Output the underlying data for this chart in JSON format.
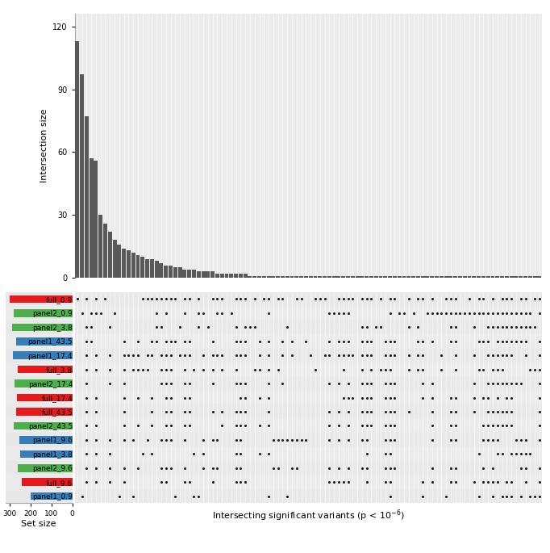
{
  "bar_heights": [
    113,
    97,
    77,
    57,
    56,
    30,
    26,
    22,
    18,
    16,
    14,
    13,
    12,
    11,
    10,
    9,
    9,
    8,
    7,
    6,
    6,
    5,
    5,
    4,
    4,
    4,
    3,
    3,
    3,
    3,
    2,
    2,
    2,
    2,
    2,
    2,
    2,
    1,
    1,
    1,
    1,
    1,
    1,
    1,
    1,
    1,
    1,
    1,
    1,
    1,
    1,
    1,
    1,
    1,
    1,
    1,
    1,
    1,
    1,
    1,
    1,
    1,
    1,
    1,
    1,
    1,
    1,
    1,
    1,
    1,
    1,
    1,
    1,
    1,
    1,
    1,
    1,
    1,
    1,
    1,
    1,
    1,
    1,
    1,
    1,
    1,
    1,
    1,
    1,
    1,
    1,
    1,
    1,
    1,
    1,
    1,
    1,
    1,
    1,
    1
  ],
  "row_labels": [
    "full_0.9",
    "panel2_0.9",
    "panel2_3.8",
    "panel1_43.5",
    "panel1_17.4",
    "full_3.8",
    "panel2_17.4",
    "full_17.4",
    "full_43.5",
    "panel2_43.5",
    "panel1_9.6",
    "panel1_3.8",
    "panel2_9.6",
    "full_9.6",
    "panel1_0.9"
  ],
  "row_colors": [
    "#e41a1c",
    "#4daf4a",
    "#4daf4a",
    "#377eb8",
    "#377eb8",
    "#e41a1c",
    "#4daf4a",
    "#e41a1c",
    "#e41a1c",
    "#4daf4a",
    "#377eb8",
    "#377eb8",
    "#4daf4a",
    "#e41a1c",
    "#377eb8"
  ],
  "set_sizes": [
    300,
    280,
    290,
    270,
    285,
    260,
    275,
    265,
    270,
    280,
    255,
    250,
    260,
    240,
    200
  ],
  "bar_color": "#595959",
  "bg_color_light": "#ebebeb",
  "bg_color_dark": "#e0e0e0",
  "dot_color": "#1a1a1a",
  "ylabel": "Intersection size",
  "xlabel": "Intersecting significant variants (p < 10$^{-6}$)",
  "set_size_label": "Set size",
  "yticks": [
    0,
    30,
    60,
    90,
    120
  ],
  "n_cols": 100,
  "n_rows": 15,
  "dot_matrix": [
    [
      1,
      0,
      1,
      0,
      1,
      0,
      1,
      0,
      0,
      0,
      0,
      0,
      0,
      0,
      1,
      1,
      1,
      1,
      1,
      1,
      1,
      1,
      0,
      1,
      1,
      0,
      1,
      0,
      0,
      1,
      1,
      1,
      0,
      0,
      1,
      1,
      1,
      0,
      1,
      0,
      1,
      1,
      0,
      1,
      1,
      0,
      0,
      1,
      1,
      0,
      0,
      1,
      1,
      1,
      0,
      0,
      1,
      1,
      1,
      1,
      0,
      1,
      1,
      1,
      0,
      1,
      0,
      1,
      1,
      0,
      0,
      1,
      0,
      1,
      1,
      0,
      1,
      0,
      0,
      1,
      1,
      1,
      0,
      0,
      1,
      0,
      1,
      1,
      0,
      1,
      0,
      1,
      1,
      1,
      0,
      1,
      1,
      0,
      1,
      1
    ],
    [
      0,
      1,
      0,
      1,
      1,
      1,
      0,
      0,
      1,
      0,
      0,
      0,
      0,
      0,
      0,
      0,
      0,
      1,
      0,
      1,
      0,
      0,
      0,
      1,
      0,
      0,
      1,
      1,
      0,
      0,
      1,
      1,
      0,
      1,
      0,
      0,
      0,
      0,
      0,
      0,
      0,
      1,
      0,
      0,
      0,
      0,
      0,
      0,
      0,
      0,
      0,
      0,
      0,
      0,
      1,
      1,
      1,
      1,
      1,
      0,
      0,
      0,
      0,
      0,
      0,
      0,
      0,
      1,
      0,
      1,
      1,
      0,
      1,
      0,
      0,
      1,
      1,
      1,
      1,
      1,
      1,
      1,
      1,
      1,
      1,
      1,
      1,
      1,
      1,
      1,
      1,
      1,
      1,
      1,
      1,
      1,
      1,
      1,
      0,
      1
    ],
    [
      0,
      0,
      1,
      1,
      0,
      0,
      0,
      1,
      0,
      0,
      0,
      0,
      0,
      0,
      0,
      0,
      0,
      1,
      1,
      0,
      0,
      0,
      1,
      0,
      0,
      0,
      1,
      0,
      1,
      0,
      0,
      0,
      0,
      0,
      1,
      0,
      1,
      1,
      1,
      0,
      0,
      0,
      0,
      0,
      0,
      1,
      0,
      0,
      0,
      0,
      0,
      0,
      0,
      0,
      0,
      0,
      0,
      0,
      0,
      0,
      0,
      1,
      1,
      0,
      1,
      1,
      0,
      0,
      0,
      0,
      0,
      1,
      0,
      1,
      0,
      0,
      0,
      0,
      0,
      0,
      1,
      1,
      0,
      0,
      0,
      1,
      0,
      0,
      1,
      1,
      1,
      1,
      1,
      1,
      1,
      1,
      1,
      1,
      1,
      0
    ],
    [
      0,
      0,
      1,
      1,
      0,
      0,
      0,
      0,
      0,
      0,
      1,
      0,
      0,
      1,
      0,
      0,
      1,
      1,
      0,
      1,
      1,
      1,
      0,
      1,
      1,
      0,
      0,
      0,
      0,
      1,
      0,
      0,
      0,
      0,
      1,
      1,
      1,
      0,
      0,
      1,
      0,
      1,
      0,
      0,
      1,
      0,
      1,
      0,
      0,
      1,
      0,
      0,
      0,
      0,
      1,
      0,
      1,
      1,
      1,
      0,
      0,
      1,
      1,
      1,
      0,
      0,
      1,
      1,
      1,
      0,
      0,
      0,
      0,
      1,
      1,
      0,
      1,
      0,
      0,
      0,
      1,
      1,
      0,
      0,
      0,
      0,
      1,
      1,
      1,
      0,
      1,
      1,
      1,
      1,
      1,
      1,
      1,
      0,
      0,
      1
    ],
    [
      0,
      0,
      1,
      0,
      1,
      0,
      0,
      1,
      0,
      0,
      1,
      1,
      1,
      1,
      0,
      1,
      1,
      0,
      1,
      1,
      1,
      0,
      1,
      1,
      1,
      0,
      0,
      1,
      0,
      1,
      1,
      1,
      0,
      0,
      1,
      1,
      1,
      0,
      0,
      1,
      0,
      1,
      0,
      0,
      1,
      0,
      1,
      0,
      0,
      0,
      1,
      0,
      0,
      1,
      1,
      0,
      1,
      1,
      1,
      1,
      0,
      1,
      1,
      1,
      0,
      0,
      1,
      1,
      1,
      0,
      0,
      1,
      0,
      1,
      1,
      0,
      0,
      0,
      1,
      0,
      0,
      1,
      0,
      0,
      0,
      1,
      0,
      0,
      1,
      1,
      1,
      1,
      1,
      1,
      0,
      0,
      1,
      0,
      0,
      1
    ],
    [
      0,
      0,
      1,
      0,
      1,
      0,
      0,
      1,
      0,
      0,
      1,
      0,
      1,
      1,
      1,
      1,
      0,
      0,
      1,
      1,
      1,
      0,
      0,
      1,
      0,
      1,
      0,
      1,
      0,
      1,
      0,
      1,
      0,
      0,
      1,
      0,
      0,
      0,
      1,
      1,
      0,
      1,
      0,
      1,
      0,
      0,
      0,
      0,
      0,
      0,
      0,
      1,
      0,
      0,
      0,
      0,
      0,
      1,
      0,
      0,
      0,
      1,
      0,
      1,
      0,
      1,
      1,
      1,
      0,
      0,
      0,
      1,
      0,
      1,
      1,
      0,
      0,
      0,
      1,
      0,
      0,
      1,
      0,
      0,
      0,
      0,
      1,
      1,
      0,
      1,
      1,
      1,
      0,
      0,
      0,
      0,
      0,
      1,
      1,
      1
    ],
    [
      0,
      0,
      1,
      0,
      0,
      0,
      0,
      1,
      0,
      0,
      1,
      0,
      0,
      0,
      0,
      0,
      0,
      0,
      1,
      1,
      1,
      0,
      0,
      1,
      1,
      0,
      0,
      0,
      0,
      1,
      0,
      0,
      0,
      0,
      1,
      1,
      1,
      0,
      0,
      0,
      0,
      1,
      0,
      0,
      1,
      0,
      0,
      0,
      0,
      0,
      0,
      0,
      0,
      0,
      1,
      0,
      1,
      0,
      1,
      0,
      0,
      1,
      1,
      1,
      0,
      0,
      1,
      1,
      1,
      0,
      0,
      0,
      0,
      0,
      1,
      0,
      1,
      0,
      0,
      0,
      0,
      0,
      0,
      0,
      0,
      1,
      0,
      0,
      1,
      1,
      1,
      1,
      1,
      1,
      1,
      1,
      0,
      0,
      0,
      1
    ],
    [
      0,
      0,
      1,
      0,
      1,
      0,
      0,
      0,
      0,
      0,
      1,
      0,
      0,
      1,
      0,
      0,
      1,
      0,
      0,
      1,
      1,
      0,
      0,
      1,
      1,
      0,
      0,
      0,
      0,
      0,
      0,
      0,
      0,
      0,
      0,
      1,
      1,
      0,
      0,
      1,
      0,
      1,
      0,
      0,
      0,
      0,
      0,
      0,
      0,
      0,
      0,
      0,
      0,
      0,
      0,
      0,
      0,
      1,
      1,
      1,
      0,
      1,
      1,
      1,
      0,
      0,
      1,
      1,
      1,
      0,
      0,
      0,
      0,
      0,
      1,
      0,
      1,
      0,
      0,
      0,
      1,
      1,
      0,
      0,
      0,
      1,
      0,
      1,
      1,
      0,
      1,
      0,
      1,
      1,
      0,
      0,
      0,
      0,
      0,
      1
    ],
    [
      0,
      0,
      1,
      0,
      1,
      0,
      0,
      0,
      0,
      0,
      1,
      0,
      0,
      0,
      0,
      0,
      1,
      0,
      0,
      1,
      1,
      0,
      0,
      1,
      1,
      0,
      0,
      0,
      0,
      1,
      0,
      1,
      0,
      0,
      1,
      1,
      1,
      0,
      0,
      0,
      0,
      1,
      0,
      0,
      0,
      0,
      0,
      0,
      0,
      0,
      0,
      0,
      0,
      0,
      1,
      0,
      1,
      0,
      1,
      0,
      0,
      1,
      1,
      1,
      0,
      0,
      1,
      1,
      1,
      0,
      0,
      1,
      0,
      0,
      0,
      0,
      1,
      0,
      0,
      0,
      1,
      1,
      0,
      0,
      0,
      1,
      0,
      0,
      1,
      1,
      1,
      1,
      1,
      1,
      0,
      0,
      0,
      0,
      0,
      1
    ],
    [
      0,
      0,
      1,
      0,
      1,
      0,
      0,
      0,
      0,
      0,
      1,
      0,
      0,
      1,
      0,
      0,
      1,
      0,
      0,
      1,
      1,
      0,
      0,
      1,
      1,
      0,
      0,
      0,
      0,
      0,
      0,
      1,
      0,
      0,
      1,
      1,
      1,
      0,
      0,
      1,
      0,
      1,
      0,
      0,
      0,
      0,
      0,
      0,
      0,
      0,
      0,
      0,
      0,
      0,
      1,
      0,
      1,
      0,
      1,
      0,
      0,
      1,
      1,
      1,
      0,
      0,
      1,
      1,
      1,
      0,
      0,
      0,
      0,
      0,
      0,
      0,
      1,
      0,
      0,
      0,
      1,
      1,
      0,
      0,
      0,
      0,
      0,
      1,
      1,
      1,
      1,
      1,
      1,
      1,
      0,
      0,
      0,
      0,
      0,
      1
    ],
    [
      0,
      0,
      1,
      0,
      1,
      0,
      0,
      1,
      0,
      0,
      1,
      0,
      1,
      0,
      0,
      1,
      0,
      0,
      1,
      1,
      1,
      0,
      0,
      1,
      0,
      0,
      0,
      1,
      0,
      1,
      1,
      0,
      0,
      0,
      1,
      1,
      0,
      0,
      0,
      0,
      0,
      0,
      1,
      1,
      1,
      1,
      1,
      1,
      1,
      1,
      0,
      0,
      0,
      0,
      1,
      0,
      1,
      0,
      1,
      0,
      0,
      1,
      1,
      0,
      0,
      0,
      1,
      1,
      1,
      0,
      0,
      0,
      0,
      0,
      0,
      0,
      1,
      0,
      0,
      0,
      1,
      1,
      0,
      0,
      0,
      0,
      0,
      1,
      1,
      1,
      1,
      0,
      0,
      0,
      1,
      1,
      1,
      0,
      0,
      1
    ],
    [
      0,
      0,
      1,
      0,
      1,
      0,
      0,
      1,
      0,
      0,
      0,
      0,
      0,
      0,
      1,
      0,
      1,
      0,
      0,
      0,
      0,
      0,
      0,
      0,
      0,
      1,
      0,
      1,
      0,
      0,
      0,
      0,
      0,
      0,
      1,
      1,
      0,
      0,
      0,
      1,
      0,
      1,
      0,
      0,
      0,
      0,
      0,
      0,
      0,
      0,
      0,
      0,
      0,
      0,
      0,
      0,
      0,
      0,
      0,
      0,
      0,
      0,
      1,
      0,
      0,
      0,
      1,
      1,
      0,
      0,
      0,
      0,
      0,
      0,
      0,
      0,
      0,
      0,
      0,
      0,
      0,
      0,
      0,
      0,
      0,
      0,
      1,
      0,
      0,
      0,
      1,
      1,
      0,
      1,
      1,
      1,
      1,
      1,
      0,
      0
    ],
    [
      0,
      0,
      1,
      0,
      1,
      0,
      0,
      1,
      0,
      0,
      1,
      0,
      0,
      1,
      0,
      0,
      0,
      0,
      1,
      1,
      1,
      0,
      0,
      1,
      0,
      0,
      0,
      1,
      0,
      1,
      1,
      0,
      0,
      0,
      1,
      1,
      0,
      0,
      0,
      0,
      0,
      0,
      1,
      1,
      0,
      0,
      1,
      1,
      0,
      0,
      0,
      0,
      0,
      0,
      1,
      0,
      1,
      0,
      1,
      0,
      0,
      1,
      1,
      0,
      0,
      0,
      1,
      1,
      1,
      0,
      0,
      0,
      0,
      0,
      0,
      0,
      1,
      0,
      0,
      0,
      1,
      1,
      0,
      0,
      0,
      0,
      0,
      1,
      0,
      1,
      0,
      0,
      0,
      0,
      0,
      1,
      1,
      0,
      0,
      1
    ],
    [
      0,
      0,
      1,
      0,
      1,
      0,
      0,
      1,
      0,
      0,
      1,
      0,
      0,
      0,
      0,
      0,
      0,
      0,
      1,
      1,
      0,
      0,
      0,
      1,
      1,
      0,
      0,
      0,
      0,
      1,
      0,
      0,
      0,
      0,
      1,
      1,
      1,
      0,
      0,
      0,
      0,
      0,
      0,
      0,
      0,
      0,
      0,
      0,
      0,
      0,
      0,
      0,
      0,
      0,
      1,
      1,
      1,
      1,
      1,
      0,
      0,
      0,
      1,
      0,
      0,
      0,
      1,
      1,
      0,
      0,
      0,
      0,
      0,
      0,
      1,
      0,
      1,
      0,
      0,
      0,
      1,
      1,
      0,
      0,
      0,
      1,
      0,
      1,
      1,
      1,
      1,
      0,
      1,
      1,
      0,
      0,
      1,
      0,
      0,
      1
    ],
    [
      0,
      1,
      0,
      0,
      0,
      0,
      0,
      0,
      0,
      1,
      0,
      0,
      1,
      0,
      0,
      0,
      0,
      0,
      0,
      0,
      0,
      1,
      0,
      0,
      0,
      1,
      1,
      0,
      0,
      0,
      0,
      0,
      0,
      0,
      0,
      0,
      0,
      0,
      0,
      0,
      0,
      1,
      0,
      0,
      0,
      1,
      0,
      0,
      0,
      0,
      0,
      0,
      0,
      0,
      0,
      0,
      0,
      0,
      0,
      0,
      0,
      0,
      0,
      0,
      0,
      0,
      0,
      1,
      0,
      0,
      0,
      0,
      0,
      0,
      1,
      0,
      0,
      0,
      0,
      1,
      0,
      0,
      0,
      0,
      0,
      0,
      1,
      0,
      0,
      1,
      0,
      1,
      1,
      1,
      0,
      1,
      0,
      1,
      1,
      1
    ]
  ]
}
